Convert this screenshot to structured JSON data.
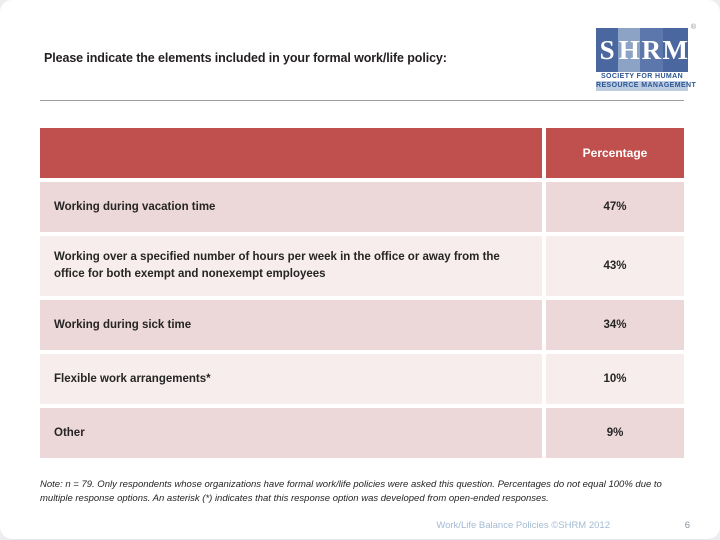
{
  "title": "Please indicate the elements included in your formal work/life policy:",
  "logo": {
    "letters": [
      "S",
      "H",
      "R",
      "M"
    ],
    "registered": "®",
    "line1": "SOCIETY FOR HUMAN",
    "line2": "RESOURCE MANAGEMENT"
  },
  "table": {
    "header_percentage": "Percentage",
    "rows": [
      {
        "label": "Working during vacation time",
        "value": "47%"
      },
      {
        "label": "Working over a specified number of hours per week in the office or away from the office for both exempt and nonexempt employees",
        "value": "43%"
      },
      {
        "label": "Working during sick time",
        "value": "34%"
      },
      {
        "label": "Flexible work arrangements*",
        "value": "10%"
      },
      {
        "label": "Other",
        "value": "9%"
      }
    ]
  },
  "note": "Note: n = 79.  Only respondents whose organizations have formal work/life policies were asked this question. Percentages do not equal 100% due to multiple response options.  An asterisk (*) indicates that this response option was developed  from open-ended responses.",
  "footer": {
    "source": "Work/Life Balance Policies ©SHRM 2012",
    "page_number": "6"
  },
  "colors": {
    "header_red": "#C0504D",
    "row_band_dark": "#ECD8D8",
    "row_band_light": "#F7EDED",
    "logo_blue": "#4A67A0",
    "footer_blue": "#A3BBD3"
  },
  "chart_data": {
    "type": "table",
    "title": "Please indicate the elements included in your formal work/life policy:",
    "columns": [
      "",
      "Percentage"
    ],
    "categories": [
      "Working during vacation time",
      "Working over a specified number of hours per week in the office or away from the office for both exempt and nonexempt employees",
      "Working during sick time",
      "Flexible work arrangements*",
      "Other"
    ],
    "values": [
      47,
      43,
      34,
      10,
      9
    ]
  }
}
